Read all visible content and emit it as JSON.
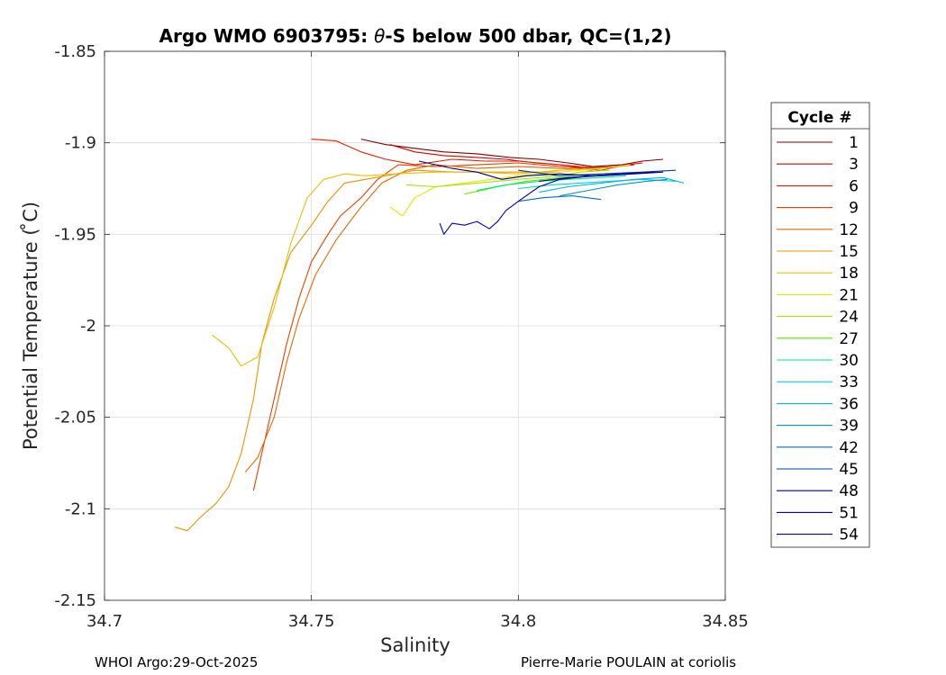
{
  "chart_data": {
    "type": "line",
    "title_prefix": "Argo WMO 6903795: ",
    "title_symbol": "θ",
    "title_suffix": "-S below 500 dbar,  QC=(1,2)",
    "xlabel": "Salinity",
    "ylabel": "Potential Temperature ( ̊C)",
    "xlim": [
      34.7,
      34.85
    ],
    "ylim": [
      -2.15,
      -1.85
    ],
    "xticks": [
      34.7,
      34.75,
      34.8,
      34.85
    ],
    "xtick_labels": [
      "34.7",
      "34.75",
      "34.8",
      "34.85"
    ],
    "yticks": [
      -1.85,
      -1.9,
      -1.95,
      -2.0,
      -2.05,
      -2.1,
      -2.15
    ],
    "ytick_labels": [
      "-1.85",
      "-1.9",
      "-1.95",
      "-2",
      "-2.05",
      "-2.1",
      "-2.15"
    ],
    "grid": true,
    "legend_title": "Cycle #",
    "legend": [
      {
        "label": "1",
        "color": "#800000"
      },
      {
        "label": "3",
        "color": "#d60000"
      },
      {
        "label": "6",
        "color": "#e01f00"
      },
      {
        "label": "9",
        "color": "#e64000"
      },
      {
        "label": "12",
        "color": "#e56800"
      },
      {
        "label": "15",
        "color": "#e69500"
      },
      {
        "label": "18",
        "color": "#e6c000"
      },
      {
        "label": "21",
        "color": "#e6e600"
      },
      {
        "label": "24",
        "color": "#9fe600"
      },
      {
        "label": "27",
        "color": "#55e600"
      },
      {
        "label": "30",
        "color": "#00e68a"
      },
      {
        "label": "33",
        "color": "#00d1d1"
      },
      {
        "label": "36",
        "color": "#00b3e6"
      },
      {
        "label": "39",
        "color": "#0096c8"
      },
      {
        "label": "42",
        "color": "#0070b8"
      },
      {
        "label": "45",
        "color": "#0040a0"
      },
      {
        "label": "48",
        "color": "#000080"
      },
      {
        "label": "51",
        "color": "#000099"
      },
      {
        "label": "54",
        "color": "#0000b3"
      }
    ],
    "series": [
      {
        "name": "1",
        "color": "#800000",
        "points": [
          [
            34.762,
            -1.898
          ],
          [
            34.768,
            -1.901
          ],
          [
            34.775,
            -1.903
          ],
          [
            34.782,
            -1.905
          ],
          [
            34.79,
            -1.906
          ],
          [
            34.798,
            -1.908
          ],
          [
            34.805,
            -1.909
          ],
          [
            34.812,
            -1.911
          ],
          [
            34.818,
            -1.913
          ],
          [
            34.825,
            -1.912
          ],
          [
            34.83,
            -1.91
          ],
          [
            34.835,
            -1.909
          ]
        ]
      },
      {
        "name": "3",
        "color": "#d60000",
        "points": [
          [
            34.769,
            -1.901
          ],
          [
            34.775,
            -1.905
          ],
          [
            34.782,
            -1.907
          ],
          [
            34.79,
            -1.908
          ],
          [
            34.797,
            -1.909
          ],
          [
            34.804,
            -1.911
          ],
          [
            34.81,
            -1.912
          ],
          [
            34.816,
            -1.914
          ],
          [
            34.823,
            -1.913
          ],
          [
            34.83,
            -1.911
          ]
        ]
      },
      {
        "name": "6",
        "color": "#e01f00",
        "points": [
          [
            34.75,
            -1.898
          ],
          [
            34.756,
            -1.899
          ],
          [
            34.762,
            -1.905
          ],
          [
            34.768,
            -1.909
          ],
          [
            34.775,
            -1.912
          ],
          [
            34.784,
            -1.909
          ],
          [
            34.792,
            -1.91
          ],
          [
            34.8,
            -1.91
          ],
          [
            34.81,
            -1.912
          ],
          [
            34.82,
            -1.914
          ],
          [
            34.828,
            -1.912
          ]
        ]
      },
      {
        "name": "9",
        "color": "#e64000",
        "points": [
          [
            34.736,
            -2.09
          ],
          [
            34.738,
            -2.07
          ],
          [
            34.741,
            -2.04
          ],
          [
            34.744,
            -2.01
          ],
          [
            34.747,
            -1.985
          ],
          [
            34.75,
            -1.965
          ],
          [
            34.754,
            -1.95
          ],
          [
            34.757,
            -1.94
          ],
          [
            34.762,
            -1.93
          ],
          [
            34.766,
            -1.92
          ],
          [
            34.771,
            -1.912
          ],
          [
            34.78,
            -1.913
          ],
          [
            34.79,
            -1.912
          ],
          [
            34.8,
            -1.911
          ],
          [
            34.81,
            -1.913
          ],
          [
            34.82,
            -1.915
          ],
          [
            34.826,
            -1.912
          ]
        ]
      },
      {
        "name": "12",
        "color": "#e56800",
        "points": [
          [
            34.734,
            -2.08
          ],
          [
            34.737,
            -2.072
          ],
          [
            34.741,
            -2.05
          ],
          [
            34.744,
            -2.02
          ],
          [
            34.747,
            -1.996
          ],
          [
            34.751,
            -1.972
          ],
          [
            34.756,
            -1.953
          ],
          [
            34.762,
            -1.935
          ],
          [
            34.767,
            -1.922
          ],
          [
            34.773,
            -1.915
          ],
          [
            34.78,
            -1.912
          ],
          [
            34.79,
            -1.914
          ],
          [
            34.8,
            -1.913
          ],
          [
            34.81,
            -1.914
          ],
          [
            34.818,
            -1.915
          ]
        ]
      },
      {
        "name": "15",
        "color": "#e69500",
        "points": [
          [
            34.717,
            -2.11
          ],
          [
            34.72,
            -2.112
          ],
          [
            34.723,
            -2.105
          ],
          [
            34.727,
            -2.097
          ],
          [
            34.73,
            -2.088
          ],
          [
            34.733,
            -2.07
          ],
          [
            34.736,
            -2.04
          ],
          [
            34.738,
            -2.01
          ],
          [
            34.741,
            -1.985
          ],
          [
            34.745,
            -1.96
          ],
          [
            34.75,
            -1.945
          ],
          [
            34.754,
            -1.932
          ],
          [
            34.758,
            -1.922
          ],
          [
            34.763,
            -1.92
          ],
          [
            34.768,
            -1.918
          ],
          [
            34.775,
            -1.915
          ],
          [
            34.785,
            -1.916
          ],
          [
            34.8,
            -1.916
          ],
          [
            34.81,
            -1.916
          ]
        ]
      },
      {
        "name": "18",
        "color": "#e6c000",
        "points": [
          [
            34.726,
            -2.005
          ],
          [
            34.73,
            -2.012
          ],
          [
            34.733,
            -2.022
          ],
          [
            34.737,
            -2.017
          ],
          [
            34.741,
            -1.99
          ],
          [
            34.745,
            -1.955
          ],
          [
            34.749,
            -1.93
          ],
          [
            34.753,
            -1.92
          ],
          [
            34.758,
            -1.917
          ],
          [
            34.763,
            -1.918
          ],
          [
            34.77,
            -1.917
          ],
          [
            34.78,
            -1.916
          ],
          [
            34.79,
            -1.916
          ],
          [
            34.8,
            -1.917
          ],
          [
            34.81,
            -1.915
          ],
          [
            34.82,
            -1.914
          ]
        ]
      },
      {
        "name": "21",
        "color": "#e6e600",
        "points": [
          [
            34.769,
            -1.935
          ],
          [
            34.772,
            -1.94
          ],
          [
            34.775,
            -1.93
          ],
          [
            34.78,
            -1.924
          ],
          [
            34.79,
            -1.921
          ],
          [
            34.8,
            -1.918
          ],
          [
            34.81,
            -1.916
          ],
          [
            34.82,
            -1.914
          ],
          [
            34.827,
            -1.912
          ]
        ]
      },
      {
        "name": "24",
        "color": "#9fe600",
        "points": [
          [
            34.773,
            -1.923
          ],
          [
            34.78,
            -1.924
          ],
          [
            34.79,
            -1.922
          ],
          [
            34.8,
            -1.92
          ],
          [
            34.81,
            -1.918
          ],
          [
            34.815,
            -1.916
          ],
          [
            34.822,
            -1.915
          ]
        ]
      },
      {
        "name": "27",
        "color": "#55e600",
        "points": [
          [
            34.787,
            -1.928
          ],
          [
            34.795,
            -1.924
          ],
          [
            34.802,
            -1.921
          ],
          [
            34.81,
            -1.919
          ],
          [
            34.817,
            -1.918
          ],
          [
            34.824,
            -1.917
          ]
        ]
      },
      {
        "name": "30",
        "color": "#00e68a",
        "points": [
          [
            34.79,
            -1.926
          ],
          [
            34.797,
            -1.923
          ],
          [
            34.805,
            -1.921
          ],
          [
            34.812,
            -1.92
          ],
          [
            34.82,
            -1.919
          ],
          [
            34.826,
            -1.918
          ]
        ]
      },
      {
        "name": "33",
        "color": "#00d1d1",
        "points": [
          [
            34.8,
            -1.925
          ],
          [
            34.808,
            -1.923
          ],
          [
            34.815,
            -1.922
          ],
          [
            34.822,
            -1.921
          ],
          [
            34.83,
            -1.92
          ],
          [
            34.838,
            -1.921
          ]
        ]
      },
      {
        "name": "36",
        "color": "#00b3e6",
        "points": [
          [
            34.805,
            -1.927
          ],
          [
            34.812,
            -1.924
          ],
          [
            34.82,
            -1.922
          ],
          [
            34.828,
            -1.92
          ],
          [
            34.835,
            -1.919
          ],
          [
            34.84,
            -1.922
          ]
        ]
      },
      {
        "name": "39",
        "color": "#0096c8",
        "points": [
          [
            34.81,
            -1.929
          ],
          [
            34.817,
            -1.926
          ],
          [
            34.824,
            -1.923
          ],
          [
            34.831,
            -1.921
          ],
          [
            34.836,
            -1.92
          ]
        ]
      },
      {
        "name": "42",
        "color": "#0070b8",
        "points": [
          [
            34.8,
            -1.932
          ],
          [
            34.806,
            -1.93
          ],
          [
            34.813,
            -1.929
          ],
          [
            34.82,
            -1.931
          ]
        ]
      },
      {
        "name": "45",
        "color": "#0040a0",
        "points": [
          [
            34.8,
            -1.915
          ],
          [
            34.81,
            -1.918
          ],
          [
            34.82,
            -1.917
          ],
          [
            34.83,
            -1.916
          ],
          [
            34.838,
            -1.915
          ]
        ]
      },
      {
        "name": "48",
        "color": "#000080",
        "points": [
          [
            34.805,
            -1.921
          ],
          [
            34.812,
            -1.919
          ],
          [
            34.82,
            -1.918
          ],
          [
            34.828,
            -1.917
          ],
          [
            34.835,
            -1.916
          ]
        ]
      },
      {
        "name": "51",
        "color": "#000099",
        "points": [
          [
            34.776,
            -1.91
          ],
          [
            34.784,
            -1.914
          ],
          [
            34.79,
            -1.916
          ],
          [
            34.796,
            -1.92
          ],
          [
            34.802,
            -1.918
          ],
          [
            34.81,
            -1.917
          ],
          [
            34.818,
            -1.918
          ],
          [
            34.826,
            -1.917
          ],
          [
            34.834,
            -1.916
          ]
        ]
      },
      {
        "name": "54",
        "color": "#0000b3",
        "points": [
          [
            34.781,
            -1.944
          ],
          [
            34.782,
            -1.95
          ],
          [
            34.784,
            -1.944
          ],
          [
            34.787,
            -1.945
          ],
          [
            34.79,
            -1.943
          ],
          [
            34.793,
            -1.947
          ],
          [
            34.795,
            -1.943
          ],
          [
            34.797,
            -1.937
          ],
          [
            34.8,
            -1.932
          ],
          [
            34.805,
            -1.924
          ],
          [
            34.81,
            -1.92
          ],
          [
            34.818,
            -1.918
          ],
          [
            34.825,
            -1.917
          ],
          [
            34.833,
            -1.916
          ]
        ]
      }
    ]
  },
  "footer": {
    "left": "WHOI Argo:29-Oct-2025",
    "right": "Pierre-Marie POULAIN at coriolis"
  }
}
